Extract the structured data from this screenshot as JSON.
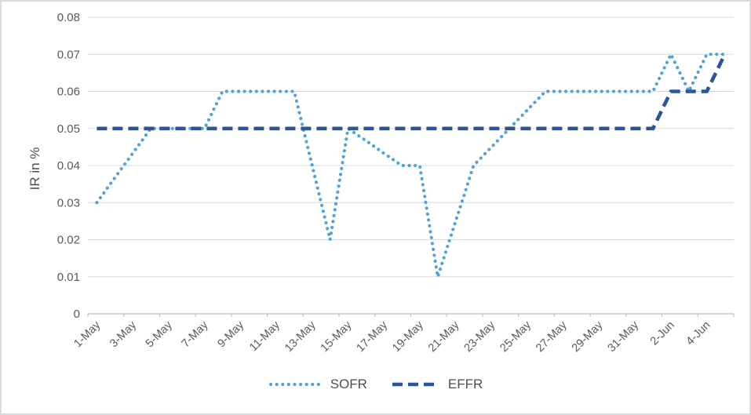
{
  "chart_data": {
    "type": "line",
    "title": "",
    "xlabel": "",
    "ylabel": "IR in %",
    "ylim": [
      0,
      0.08
    ],
    "ytick_step": 0.01,
    "ytick_labels": [
      "0",
      "0.01",
      "0.02",
      "0.03",
      "0.04",
      "0.05",
      "0.06",
      "0.07",
      "0.08"
    ],
    "x_categories": [
      "1-May",
      "2-May",
      "3-May",
      "4-May",
      "5-May",
      "6-May",
      "7-May",
      "8-May",
      "9-May",
      "10-May",
      "11-May",
      "12-May",
      "13-May",
      "14-May",
      "15-May",
      "16-May",
      "17-May",
      "18-May",
      "19-May",
      "20-May",
      "21-May",
      "22-May",
      "23-May",
      "24-May",
      "25-May",
      "26-May",
      "27-May",
      "28-May",
      "29-May",
      "30-May",
      "31-May",
      "1-Jun",
      "2-Jun",
      "3-Jun",
      "4-Jun",
      "5-Jun"
    ],
    "xtick_every": 2,
    "xtick_labels": [
      "1-May",
      "3-May",
      "5-May",
      "7-May",
      "9-May",
      "11-May",
      "13-May",
      "15-May",
      "17-May",
      "19-May",
      "21-May",
      "23-May",
      "25-May",
      "27-May",
      "29-May",
      "31-May",
      "2-Jun",
      "4-Jun"
    ],
    "grid": true,
    "legend_position": "bottom",
    "series": [
      {
        "name": "SOFR",
        "color": "#4fa3da",
        "line_style": "dotted",
        "values": [
          0.03,
          0.0367,
          0.0433,
          0.05,
          0.05,
          0.05,
          0.05,
          0.06,
          0.06,
          0.06,
          0.06,
          0.06,
          0.04,
          0.02,
          0.05,
          0.0467,
          0.0433,
          0.04,
          0.04,
          0.01,
          0.025,
          0.04,
          0.045,
          0.05,
          0.055,
          0.06,
          0.06,
          0.06,
          0.06,
          0.06,
          0.06,
          0.06,
          0.07,
          0.06,
          0.07,
          0.07
        ]
      },
      {
        "name": "EFFR",
        "color": "#2a5699",
        "line_style": "dashed",
        "values": [
          0.05,
          0.05,
          0.05,
          0.05,
          0.05,
          0.05,
          0.05,
          0.05,
          0.05,
          0.05,
          0.05,
          0.05,
          0.05,
          0.05,
          0.05,
          0.05,
          0.05,
          0.05,
          0.05,
          0.05,
          0.05,
          0.05,
          0.05,
          0.05,
          0.05,
          0.05,
          0.05,
          0.05,
          0.05,
          0.05,
          0.05,
          0.05,
          0.06,
          0.06,
          0.06,
          0.07
        ]
      }
    ],
    "colors": {
      "gridline": "#d9d9d9",
      "axis_line": "#bfbfbf",
      "axis_text": "#595959"
    }
  }
}
